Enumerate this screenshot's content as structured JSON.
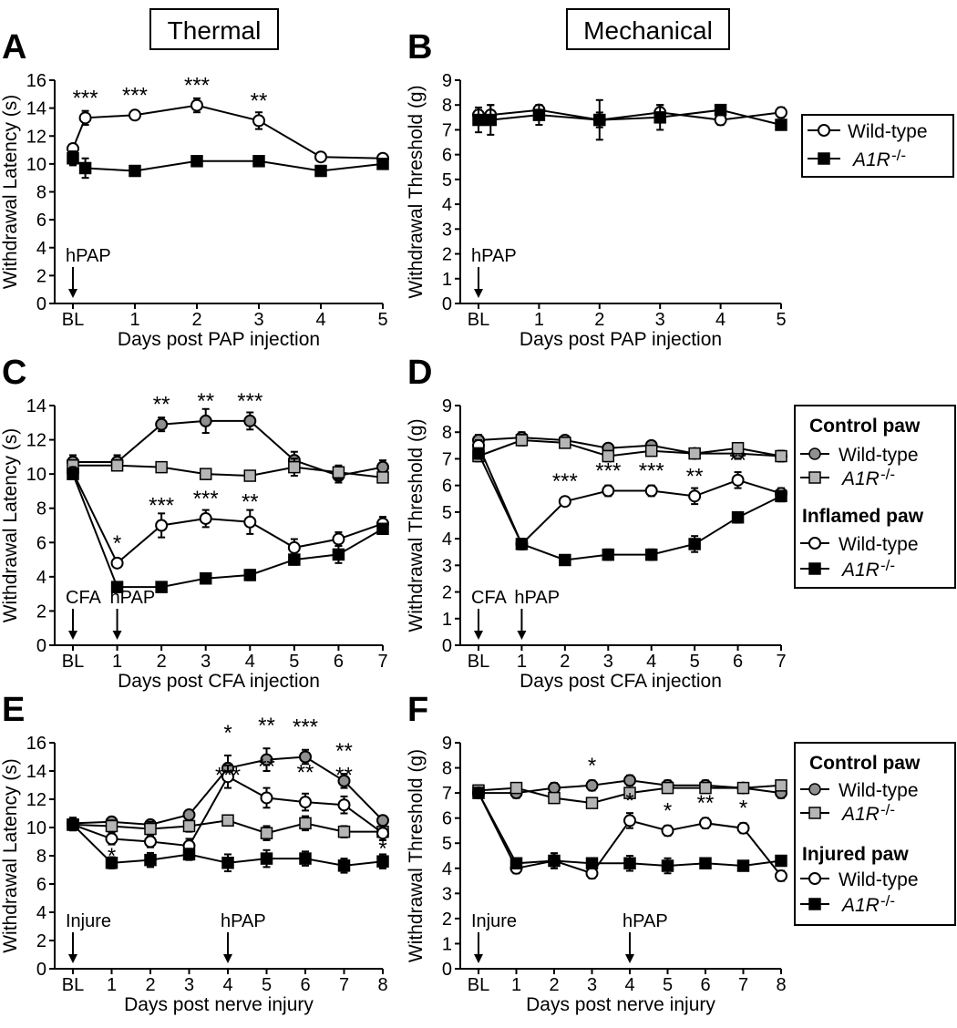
{
  "headers": {
    "thermal": "Thermal",
    "mechanical": "Mechanical"
  },
  "legends": {
    "top": [
      {
        "label": "Wild-type",
        "marker": "circle-open"
      },
      {
        "label": "A1R",
        "suffix": "-/-",
        "marker": "square-black"
      }
    ],
    "inflamed": {
      "group1_title": "Control paw",
      "group1": [
        {
          "label": "Wild-type",
          "marker": "circle-gray"
        },
        {
          "label": "A1R",
          "suffix": "-/-",
          "marker": "square-gray"
        }
      ],
      "group2_title": "Inflamed paw",
      "group2": [
        {
          "label": "Wild-type",
          "marker": "circle-open"
        },
        {
          "label": "A1R",
          "suffix": "-/-",
          "marker": "square-black"
        }
      ]
    },
    "injured": {
      "group1_title": "Control paw",
      "group1": [
        {
          "label": "Wild-type",
          "marker": "circle-gray"
        },
        {
          "label": "A1R",
          "suffix": "-/-",
          "marker": "square-gray"
        }
      ],
      "group2_title": "Injured paw",
      "group2": [
        {
          "label": "Wild-type",
          "marker": "circle-open"
        },
        {
          "label": "A1R",
          "suffix": "-/-",
          "marker": "square-black"
        }
      ]
    }
  },
  "chart_data": [
    {
      "panel": "A",
      "type": "line",
      "ylabel": "Withdrawal Latency (s)",
      "xlabel": "Days post PAP injection",
      "ylim": [
        0,
        16
      ],
      "yticks": [
        0,
        2,
        4,
        6,
        8,
        10,
        12,
        14,
        16
      ],
      "xticks": [
        "BL",
        "1",
        "2",
        "3",
        "4",
        "5"
      ],
      "arrows": [
        {
          "label": "hPAP",
          "x": 0
        }
      ],
      "series": [
        {
          "name": "Wild-type",
          "marker": "circle-open",
          "x": [
            0,
            0.2,
            1,
            2,
            3,
            4,
            5
          ],
          "y": [
            11.1,
            13.3,
            13.5,
            14.2,
            13.1,
            10.5,
            10.4
          ],
          "err": [
            0.3,
            0.5,
            0.3,
            0.5,
            0.6,
            0.3,
            0.3
          ]
        },
        {
          "name": "A1R-/-",
          "marker": "square-black",
          "x": [
            0,
            0.2,
            1,
            2,
            3,
            4,
            5
          ],
          "y": [
            10.4,
            9.7,
            9.5,
            10.2,
            10.2,
            9.5,
            10.0
          ],
          "err": [
            0.5,
            0.7,
            0.3,
            0.3,
            0.3,
            0.3,
            0.3
          ]
        }
      ],
      "annotations": [
        {
          "text": "***",
          "x": 0.2,
          "y": 13.3
        },
        {
          "text": "***",
          "x": 1,
          "y": 13.5
        },
        {
          "text": "***",
          "x": 2,
          "y": 14.2
        },
        {
          "text": "**",
          "x": 3,
          "y": 13.1
        }
      ]
    },
    {
      "panel": "B",
      "type": "line",
      "ylabel": "Withdrawal Threshold (g)",
      "xlabel": "Days post PAP injection",
      "ylim": [
        0,
        9
      ],
      "yticks": [
        0,
        1,
        2,
        3,
        4,
        5,
        6,
        7,
        8,
        9
      ],
      "xticks": [
        "BL",
        "1",
        "2",
        "3",
        "4",
        "5"
      ],
      "arrows": [
        {
          "label": "hPAP",
          "x": 0
        }
      ],
      "series": [
        {
          "name": "Wild-type",
          "marker": "circle-open",
          "x": [
            0,
            0.2,
            1,
            2,
            3,
            4,
            5
          ],
          "y": [
            7.6,
            7.6,
            7.8,
            7.4,
            7.7,
            7.4,
            7.7
          ],
          "err": [
            0.2,
            0.4,
            0.2,
            0.3,
            0.3,
            0.2,
            0.2
          ]
        },
        {
          "name": "A1R-/-",
          "marker": "square-black",
          "x": [
            0,
            0.2,
            1,
            2,
            3,
            4,
            5
          ],
          "y": [
            7.4,
            7.4,
            7.6,
            7.4,
            7.5,
            7.8,
            7.2
          ],
          "err": [
            0.5,
            0.6,
            0.4,
            0.8,
            0.5,
            0.2,
            0.2
          ]
        }
      ],
      "annotations": []
    },
    {
      "panel": "C",
      "type": "line",
      "ylabel": "Withdrawal Latency (s)",
      "xlabel": "Days post CFA injection",
      "ylim": [
        0,
        14
      ],
      "yticks": [
        0,
        2,
        4,
        6,
        8,
        10,
        12,
        14
      ],
      "xticks": [
        "BL",
        "1",
        "2",
        "3",
        "4",
        "5",
        "6",
        "7"
      ],
      "arrows": [
        {
          "label": "CFA",
          "x": 0
        },
        {
          "label": "hPAP",
          "x": 1
        }
      ],
      "series": [
        {
          "name": "Control paw Wild-type",
          "marker": "circle-gray",
          "x": [
            0,
            1,
            2,
            3,
            4,
            5,
            6,
            7
          ],
          "y": [
            10.7,
            10.7,
            12.9,
            13.1,
            13.1,
            10.8,
            9.9,
            10.4
          ],
          "err": [
            0.4,
            0.4,
            0.4,
            0.7,
            0.5,
            0.5,
            0.4,
            0.4
          ]
        },
        {
          "name": "Control paw A1R-/-",
          "marker": "square-gray",
          "x": [
            0,
            1,
            2,
            3,
            4,
            5,
            6,
            7
          ],
          "y": [
            10.5,
            10.5,
            10.4,
            10.0,
            9.9,
            10.4,
            10.1,
            9.8
          ],
          "err": [
            0.3,
            0.3,
            0.2,
            0.3,
            0.2,
            0.5,
            0.4,
            0.2
          ]
        },
        {
          "name": "Inflamed paw Wild-type",
          "marker": "circle-open",
          "x": [
            0,
            1,
            2,
            3,
            4,
            5,
            6,
            7
          ],
          "y": [
            10.1,
            4.8,
            7.0,
            7.4,
            7.2,
            5.7,
            6.2,
            7.1
          ],
          "err": [
            0.3,
            0.2,
            0.7,
            0.5,
            0.7,
            0.5,
            0.4,
            0.4
          ]
        },
        {
          "name": "Inflamed paw A1R-/-",
          "marker": "square-black",
          "x": [
            0,
            1,
            2,
            3,
            4,
            5,
            6,
            7
          ],
          "y": [
            10.0,
            3.4,
            3.4,
            3.9,
            4.1,
            5.0,
            5.3,
            6.8
          ],
          "err": [
            0.3,
            0.3,
            0.2,
            0.2,
            0.3,
            0.3,
            0.5,
            0.3
          ]
        }
      ],
      "annotations": [
        {
          "text": "*",
          "x": 1,
          "y": 4.8
        },
        {
          "text": "***",
          "x": 2,
          "y": 7.0
        },
        {
          "text": "***",
          "x": 3,
          "y": 7.4
        },
        {
          "text": "**",
          "x": 4,
          "y": 7.2
        },
        {
          "text": "**",
          "x": 2,
          "y": 12.9
        },
        {
          "text": "**",
          "x": 3,
          "y": 13.1
        },
        {
          "text": "***",
          "x": 4,
          "y": 13.1
        }
      ]
    },
    {
      "panel": "D",
      "type": "line",
      "ylabel": "Withdrawal Threshold (g)",
      "xlabel": "Days post CFA injection",
      "ylim": [
        0,
        9
      ],
      "yticks": [
        0,
        1,
        2,
        3,
        4,
        5,
        6,
        7,
        8,
        9
      ],
      "xticks": [
        "BL",
        "1",
        "2",
        "3",
        "4",
        "5",
        "6",
        "7"
      ],
      "arrows": [
        {
          "label": "CFA",
          "x": 0
        },
        {
          "label": "hPAP",
          "x": 1
        }
      ],
      "series": [
        {
          "name": "Control paw Wild-type",
          "marker": "circle-gray",
          "x": [
            0,
            1,
            2,
            3,
            4,
            5,
            6,
            7
          ],
          "y": [
            7.7,
            7.8,
            7.7,
            7.4,
            7.5,
            7.2,
            7.2,
            7.1
          ],
          "err": [
            0.2,
            0.2,
            0.1,
            0.1,
            0.1,
            0.1,
            0.2,
            0.2
          ]
        },
        {
          "name": "Control paw A1R-/-",
          "marker": "square-gray",
          "x": [
            0,
            1,
            2,
            3,
            4,
            5,
            6,
            7
          ],
          "y": [
            7.1,
            7.7,
            7.6,
            7.1,
            7.3,
            7.2,
            7.4,
            7.1
          ],
          "err": [
            0.2,
            0.2,
            0.1,
            0.2,
            0.1,
            0.1,
            0.1,
            0.2
          ]
        },
        {
          "name": "Inflamed paw Wild-type",
          "marker": "circle-open",
          "x": [
            0,
            1,
            2,
            3,
            4,
            5,
            6,
            7
          ],
          "y": [
            7.5,
            3.8,
            5.4,
            5.8,
            5.8,
            5.6,
            6.2,
            5.7
          ],
          "err": [
            0.2,
            0.2,
            0.1,
            0.2,
            0.2,
            0.3,
            0.3,
            0.2
          ]
        },
        {
          "name": "Inflamed paw A1R-/-",
          "marker": "square-black",
          "x": [
            0,
            1,
            2,
            3,
            4,
            5,
            6,
            7
          ],
          "y": [
            7.2,
            3.8,
            3.2,
            3.4,
            3.4,
            3.8,
            4.8,
            5.6
          ],
          "err": [
            0.2,
            0.2,
            0.1,
            0.2,
            0.2,
            0.3,
            0.2,
            0.2
          ]
        }
      ],
      "annotations": [
        {
          "text": "***",
          "x": 2,
          "y": 5.4
        },
        {
          "text": "***",
          "x": 3,
          "y": 5.8
        },
        {
          "text": "***",
          "x": 4,
          "y": 5.8
        },
        {
          "text": "**",
          "x": 5,
          "y": 5.6
        },
        {
          "text": "**",
          "x": 6,
          "y": 6.2
        }
      ]
    },
    {
      "panel": "E",
      "type": "line",
      "ylabel": "Withdrawal Latency (s)",
      "xlabel": "Days post nerve injury",
      "ylim": [
        0,
        16
      ],
      "yticks": [
        0,
        2,
        4,
        6,
        8,
        10,
        12,
        14,
        16
      ],
      "xticks": [
        "BL",
        "1",
        "2",
        "3",
        "4",
        "5",
        "6",
        "7",
        "8"
      ],
      "arrows": [
        {
          "label": "Injure",
          "x": 0
        },
        {
          "label": "hPAP",
          "x": 4
        }
      ],
      "series": [
        {
          "name": "Control paw Wild-type",
          "marker": "circle-gray",
          "x": [
            0,
            1,
            2,
            3,
            4,
            5,
            6,
            7,
            8
          ],
          "y": [
            10.3,
            10.4,
            10.2,
            10.9,
            14.2,
            14.8,
            15.0,
            13.3,
            10.5
          ],
          "err": [
            0.4,
            0.3,
            0.3,
            0.3,
            0.9,
            0.8,
            0.5,
            0.5,
            0.3
          ]
        },
        {
          "name": "Control paw A1R-/-",
          "marker": "square-gray",
          "x": [
            0,
            1,
            2,
            3,
            4,
            5,
            6,
            7,
            8
          ],
          "y": [
            10.2,
            10.1,
            9.9,
            10.1,
            10.5,
            9.6,
            10.3,
            9.7,
            9.7
          ],
          "err": [
            0.4,
            0.4,
            0.5,
            0.4,
            0.3,
            0.5,
            0.5,
            0.4,
            0.3
          ]
        },
        {
          "name": "Injured paw Wild-type",
          "marker": "circle-open",
          "x": [
            0,
            1,
            2,
            3,
            4,
            5,
            6,
            7,
            8
          ],
          "y": [
            10.2,
            9.2,
            9.0,
            8.7,
            13.6,
            12.1,
            11.8,
            11.6,
            9.6
          ],
          "err": [
            0.4,
            0.4,
            0.4,
            0.5,
            0.8,
            0.7,
            0.6,
            0.6,
            0.5
          ]
        },
        {
          "name": "Injured paw A1R-/-",
          "marker": "square-black",
          "x": [
            0,
            1,
            2,
            3,
            4,
            5,
            6,
            7,
            8
          ],
          "y": [
            10.2,
            7.5,
            7.7,
            8.1,
            7.5,
            7.8,
            7.8,
            7.3,
            7.6
          ],
          "err": [
            0.4,
            0.4,
            0.5,
            0.4,
            0.6,
            0.6,
            0.5,
            0.5,
            0.5
          ]
        }
      ],
      "annotations": [
        {
          "text": "*",
          "x": 1,
          "y": 8.4
        },
        {
          "text": "*",
          "x": 4,
          "y": 15.3
        },
        {
          "text": "**",
          "x": 5,
          "y": 15.8
        },
        {
          "text": "***",
          "x": 6,
          "y": 15.7
        },
        {
          "text": "**",
          "x": 7,
          "y": 14.0
        },
        {
          "text": "***",
          "x": 4,
          "y": 12.3
        },
        {
          "text": "**",
          "x": 5,
          "y": 12.9
        },
        {
          "text": "**",
          "x": 6,
          "y": 12.5
        },
        {
          "text": "**",
          "x": 7,
          "y": 12.3
        },
        {
          "text": "*",
          "x": 8,
          "y": 8.9
        }
      ]
    },
    {
      "panel": "F",
      "type": "line",
      "ylabel": "Withdrawal Threshold (g)",
      "xlabel": "Days post nerve injury",
      "ylim": [
        0,
        9
      ],
      "yticks": [
        0,
        1,
        2,
        3,
        4,
        5,
        6,
        7,
        8,
        9
      ],
      "xticks": [
        "BL",
        "1",
        "2",
        "3",
        "4",
        "5",
        "6",
        "7",
        "8"
      ],
      "arrows": [
        {
          "label": "Injure",
          "x": 0
        },
        {
          "label": "hPAP",
          "x": 4
        }
      ],
      "series": [
        {
          "name": "Control paw Wild-type",
          "marker": "circle-gray",
          "x": [
            0,
            1,
            2,
            3,
            4,
            5,
            6,
            7,
            8
          ],
          "y": [
            7.0,
            7.0,
            7.2,
            7.3,
            7.5,
            7.3,
            7.3,
            7.2,
            7.0
          ],
          "err": [
            0.2,
            0.2,
            0.2,
            0.2,
            0.2,
            0.2,
            0.2,
            0.2,
            0.2
          ]
        },
        {
          "name": "Control paw A1R-/-",
          "marker": "square-gray",
          "x": [
            0,
            1,
            2,
            3,
            4,
            5,
            6,
            7,
            8
          ],
          "y": [
            7.1,
            7.2,
            6.8,
            6.6,
            7.0,
            7.2,
            7.2,
            7.2,
            7.3
          ],
          "err": [
            0.2,
            0.2,
            0.2,
            0.1,
            0.2,
            0.2,
            0.2,
            0.2,
            0.2
          ]
        },
        {
          "name": "Injured paw Wild-type",
          "marker": "circle-open",
          "x": [
            0,
            1,
            2,
            3,
            4,
            5,
            6,
            7,
            8
          ],
          "y": [
            7.0,
            4.0,
            4.3,
            3.8,
            5.9,
            5.5,
            5.8,
            5.6,
            3.7
          ],
          "err": [
            0.2,
            0.2,
            0.3,
            0.2,
            0.3,
            0.2,
            0.2,
            0.2,
            0.2
          ]
        },
        {
          "name": "Injured paw A1R-/-",
          "marker": "square-black",
          "x": [
            0,
            1,
            2,
            3,
            4,
            5,
            6,
            7,
            8
          ],
          "y": [
            7.0,
            4.2,
            4.3,
            4.2,
            4.2,
            4.1,
            4.2,
            4.1,
            4.3
          ],
          "err": [
            0.2,
            0.2,
            0.3,
            0.2,
            0.3,
            0.3,
            0.2,
            0.2,
            0.2
          ]
        }
      ],
      "annotations": [
        {
          "text": "*",
          "x": 3,
          "y": 7.3
        },
        {
          "text": "*",
          "x": 4,
          "y": 5.9
        },
        {
          "text": "*",
          "x": 5,
          "y": 5.5
        },
        {
          "text": "**",
          "x": 6,
          "y": 5.8
        },
        {
          "text": "*",
          "x": 7,
          "y": 5.6
        }
      ]
    }
  ]
}
